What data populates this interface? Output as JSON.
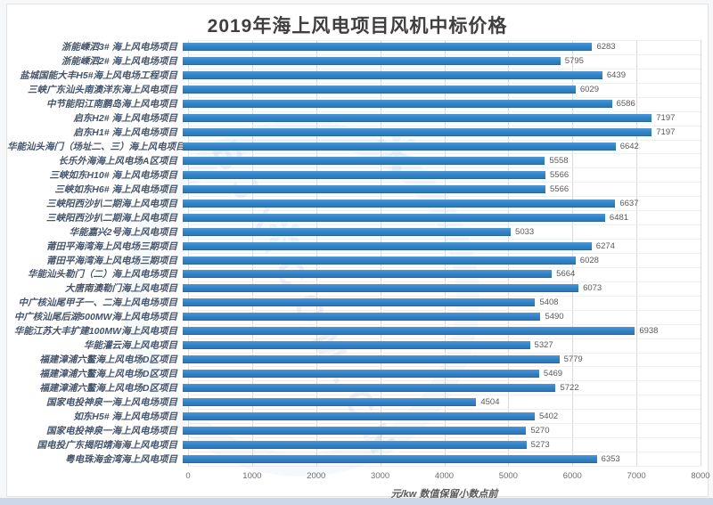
{
  "title": "2019年海上风电项目风机中标价格",
  "footer_note": "元/kw 数值保留小数点前",
  "watermark": {
    "text": "BJX.COM.CN",
    "icon": "star"
  },
  "colors": {
    "bar": "#3282c6",
    "grid_line": "#d9d9d9",
    "label_text": "#44546a",
    "value_text": "#595959",
    "bottom_strip": "#ccd8ea"
  },
  "chart_data": {
    "type": "bar",
    "orientation": "horizontal",
    "title": "2019年海上风电项目风机中标价格",
    "xlabel": "元/kw 数值保留小数点前",
    "xlim": [
      0,
      8000
    ],
    "xticks": [
      0,
      1000,
      2000,
      3000,
      4000,
      5000,
      6000,
      7000,
      8000
    ],
    "grid": true,
    "value_labels": true,
    "categories": [
      "浙能嵊泗3# 海上风电场项目",
      "浙能嵊泗2# 海上风电场项目",
      "盐城国能大丰H5#海上风电场工程项目",
      "三峡广东汕头南澳洋东海上风电项目",
      "中节能阳江南鹏岛海上风电项目",
      "启东H2# 海上风电场项目",
      "启东H1# 海上风电场项目",
      "华能汕头海门（场址二、三）海上风电项目",
      "长乐外海海上风电场A区项目",
      "三峡如东H10# 海上风电场项目",
      "三峡如东H6# 海上风电场项目",
      "三峡阳西沙扒二期海上风电项目",
      "三峡阳西沙扒二期海上风电项目",
      "华能嘉兴2号海上风电项目",
      "莆田平海湾海上风电场三期项目",
      "莆田平海湾海上风电场三期项目",
      "华能汕头勒门（二）海上风电场项目",
      "大唐南澳勒门海上风电项目",
      "中广核汕尾甲子一、二海上风电场项目",
      "中广核汕尾后湖500MW海上风电场项目",
      "华能江苏大丰扩建100MW海上风电项目",
      "华能灌云海上风电项目",
      "福建漳浦六鳌海上风电场D区项目",
      "福建漳浦六鳌海上风电场D区项目",
      "福建漳浦六鳌海上风电场D区项目",
      "国家电投神泉一海上风电场项目",
      "如东H5# 海上风电场项目",
      "国家电投神泉一海上风电场项目",
      "国电投广东揭阳靖海海上风电项目",
      "粤电珠海金湾海上风电项目"
    ],
    "values": [
      6283,
      5795,
      6439,
      6029,
      6586,
      7197,
      7197,
      6642,
      5558,
      5566,
      5566,
      6637,
      6481,
      5033,
      6274,
      6028,
      5664,
      6073,
      5408,
      5490,
      6938,
      5327,
      5779,
      5469,
      5722,
      4504,
      5402,
      5270,
      5273,
      6353
    ]
  }
}
